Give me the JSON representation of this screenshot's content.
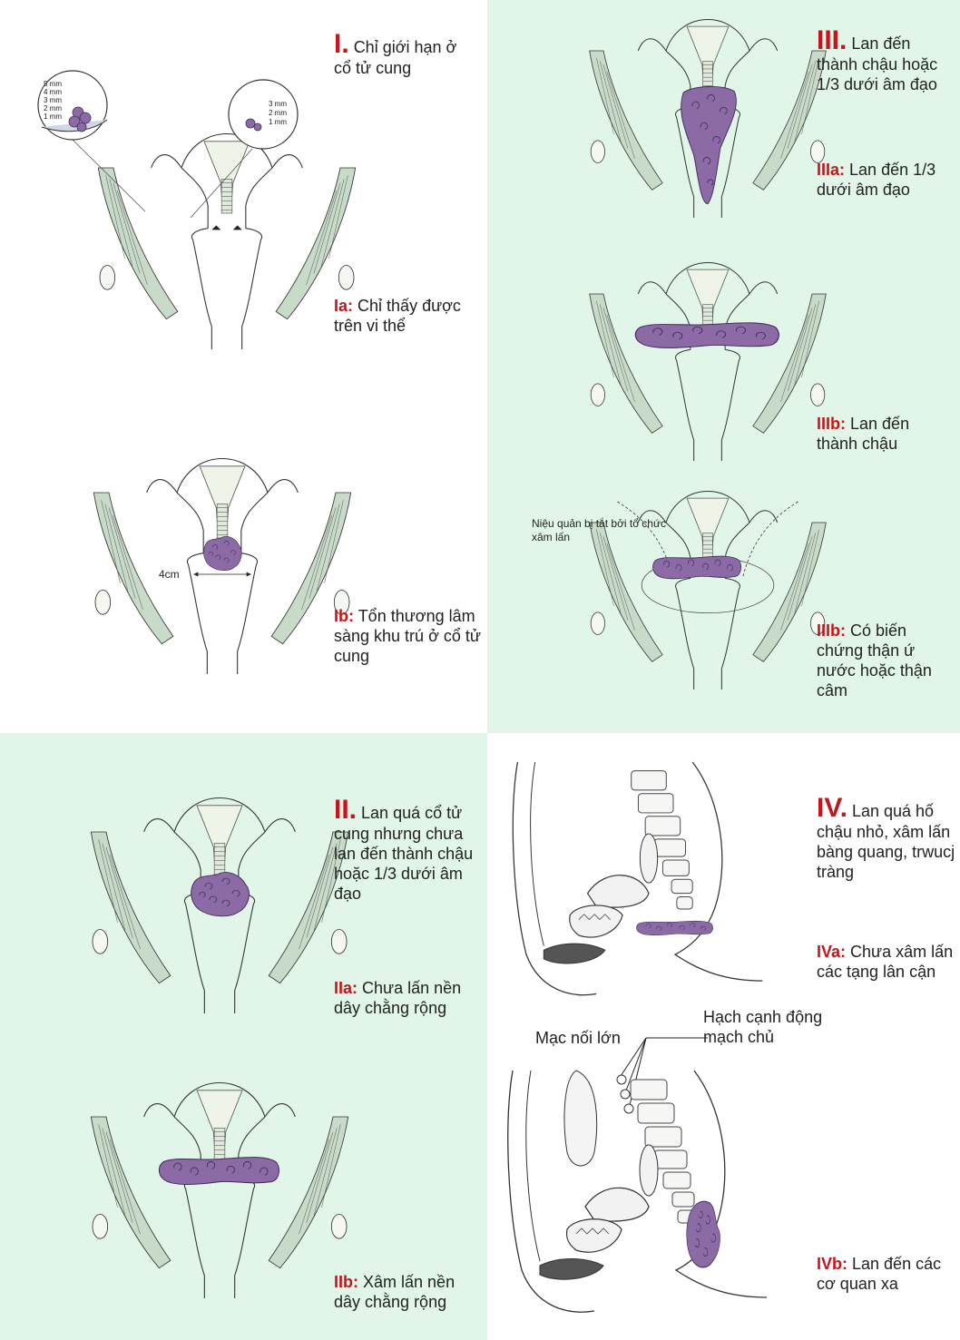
{
  "colors": {
    "accent": "#c4161c",
    "tumor": "#8c6aa6",
    "tumor_edge": "#3d2b55",
    "green_bg": "#e1f6e8",
    "line": "#333333"
  },
  "stages": {
    "I": {
      "label": "I.",
      "text": "Chỉ giới hạn ở cổ tử cung"
    },
    "Ia": {
      "label": "Ia:",
      "text": "Chỉ thấy được trên vi thể"
    },
    "Ib": {
      "label": "Ib:",
      "text": "Tổn thương lâm sàng khu trú ở cổ tử cung"
    },
    "II": {
      "label": "II.",
      "text": "Lan quá cổ tử cung nhưng chưa lan đến thành chậu hoặc 1/3 dưới âm đạo"
    },
    "IIa": {
      "label": "IIa:",
      "text": "Chưa lấn nền dây chằng rộng"
    },
    "IIb": {
      "label": "IIb:",
      "text": "Xâm lấn nền dây chằng rộng"
    },
    "III": {
      "label": "III.",
      "text": "Lan đến thành chậu hoặc 1/3 dưới âm đạo"
    },
    "IIIa": {
      "label": "IIIa:",
      "text": "Lan đến 1/3 dưới âm đạo"
    },
    "IIIb": {
      "label": "IIIb:",
      "text": "Lan đến thành chậu"
    },
    "IIIb2": {
      "label": "IIIb:",
      "text": "Có biến chứng thận ứ nước hoặc thận câm"
    },
    "IV": {
      "label": "IV.",
      "text": "Lan quá hố chậu nhỏ, xâm lấn bàng quang, trwucj tràng"
    },
    "IVa": {
      "label": "IVa:",
      "text": "Chưa xâm lấn các tạng lân cận"
    },
    "IVb": {
      "label": "IVb:",
      "text": "Lan đến các cơ quan xa"
    }
  },
  "annotations": {
    "ruler_left": [
      "5 mm",
      "4 mm",
      "3 mm",
      "2 mm",
      "1 mm"
    ],
    "ruler_right": [
      "3 mm",
      "2 mm",
      "1 mm"
    ],
    "size_4cm": "4cm",
    "ureter": "Niệu quản bị tắt bởi tổ chức xâm lấn",
    "omentum": "Mạc nối lớn",
    "aortic_nodes": "Hạch cạnh động mạch chủ"
  }
}
